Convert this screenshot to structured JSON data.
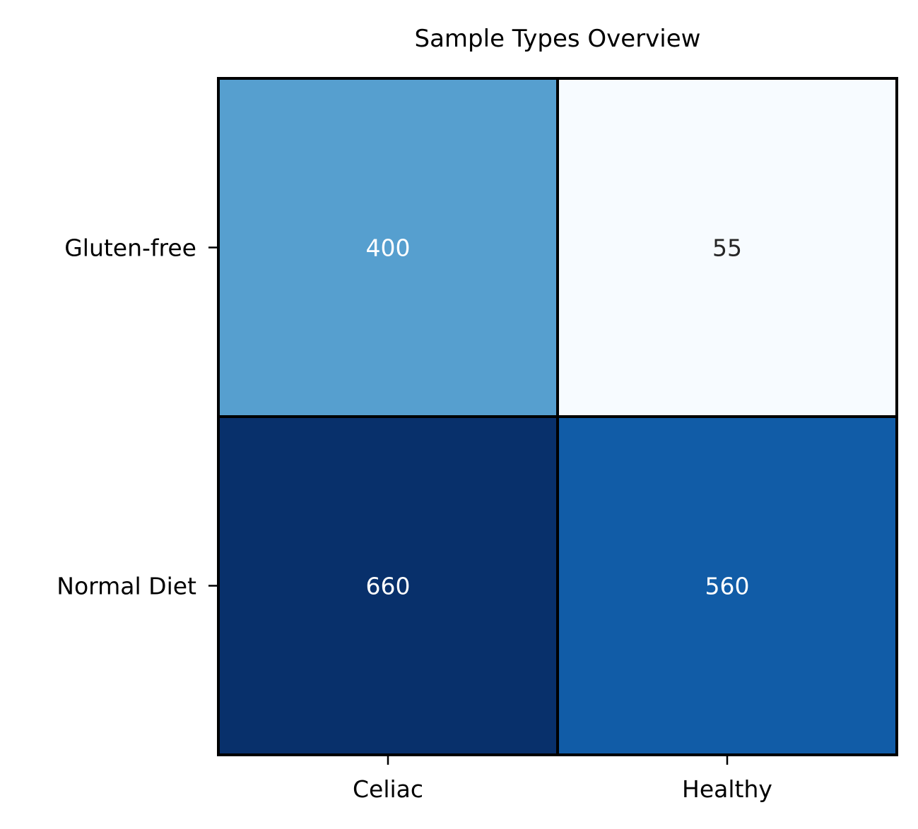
{
  "chart_data": {
    "type": "heatmap",
    "title": "Sample Types Overview",
    "xlabel": "",
    "ylabel": "",
    "x_categories": [
      "Celiac",
      "Healthy"
    ],
    "y_categories": [
      "Gluten-free",
      "Normal Diet"
    ],
    "values": [
      [
        400,
        55
      ],
      [
        660,
        560
      ]
    ],
    "value_labels": [
      [
        "400",
        "55"
      ],
      [
        "660",
        "560"
      ]
    ],
    "colormap": "Blues",
    "cell_colors": [
      [
        "#569fcf",
        "#f7fbff"
      ],
      [
        "#08306b",
        "#115ca7"
      ]
    ],
    "label_colors": [
      [
        "#ffffff",
        "#262626"
      ],
      [
        "#ffffff",
        "#ffffff"
      ]
    ],
    "colorbar": false,
    "grid_line_color": "#000000"
  }
}
